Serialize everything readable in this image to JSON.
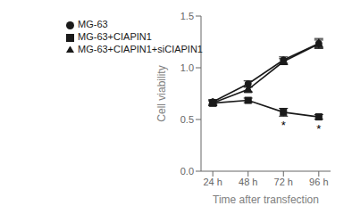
{
  "chart_data": {
    "type": "line",
    "xlabel": "Time after transfection",
    "ylabel": "Cell viability",
    "x": [
      24,
      48,
      72,
      96
    ],
    "series": [
      {
        "name": "MG-63",
        "color": "#1a1a1a",
        "marker": "circle",
        "line_style": "solid",
        "values": [
          0.67,
          0.845,
          1.075,
          1.235
        ],
        "errors": [
          0.022,
          0.028,
          0.03,
          0.048
        ]
      },
      {
        "name": "MG-63+CIAPIN1",
        "color": "#1a1a1a",
        "marker": "square",
        "line_style": "solid",
        "values": [
          0.658,
          0.685,
          0.57,
          0.525
        ],
        "errors": [
          0.022,
          0.022,
          0.038,
          0.022
        ]
      },
      {
        "name": "MG-63+CIAPIN1+siCIAPIN1",
        "color": "#1a1a1a",
        "marker": "triangle",
        "line_style": "solid",
        "values": [
          0.66,
          0.79,
          1.06,
          1.23
        ],
        "errors": [
          0.022,
          0.022,
          0.028,
          0.038
        ]
      }
    ],
    "xlim": [
      16,
      104
    ],
    "xticks": [
      {
        "value": 24,
        "label": "24 h"
      },
      {
        "value": 48,
        "label": "48 h"
      },
      {
        "value": 72,
        "label": "72 h"
      },
      {
        "value": 96,
        "label": "96 h"
      }
    ],
    "ylim": [
      0.0,
      1.5
    ],
    "yticks": [
      {
        "value": 0.0,
        "label": "0.0"
      },
      0.5,
      {
        "value": 1.0,
        "label": "1.0"
      },
      1.5
    ],
    "annotations": [
      {
        "x": 72,
        "y": 0.488,
        "text": "*"
      },
      {
        "x": 96,
        "y": 0.455,
        "text": "*"
      }
    ],
    "legend": "upper left",
    "grid": false
  }
}
